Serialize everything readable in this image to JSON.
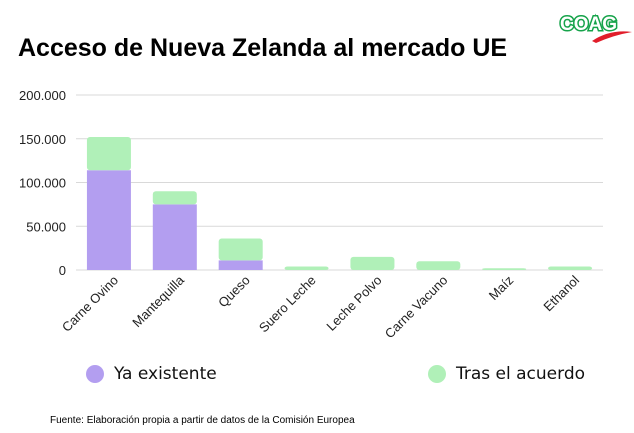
{
  "colors": {
    "existing": "#b39ef0",
    "after_deal": "#b0f0b8",
    "grid": "#d9d9d9",
    "logo_green": "#16a34a",
    "logo_red": "#e11d2a"
  },
  "logo": {
    "text": "COAG"
  },
  "chart_data": {
    "type": "bar",
    "stacked": true,
    "title": "Acceso de Nueva Zelanda al mercado UE",
    "categories": [
      "Carne Ovino",
      "Mantequilla",
      "Queso",
      "Suero Leche",
      "Leche Polvo",
      "Carne Vacuno",
      "Maíz",
      "Ethanol"
    ],
    "series": [
      {
        "name": "Ya existente",
        "values": [
          114000,
          75000,
          11000,
          0,
          0,
          0,
          0,
          0
        ]
      },
      {
        "name": "Tras el acuerdo",
        "values": [
          38000,
          15000,
          25000,
          4000,
          15000,
          10000,
          2000,
          4000
        ]
      }
    ],
    "ylim": [
      0,
      200000
    ],
    "yticks": [
      "0",
      "50.000",
      "100.000",
      "150.000",
      "200.000"
    ],
    "grid": true,
    "legend_position": "bottom"
  },
  "legend": {
    "existing_label": "Ya existente",
    "after_label": "Tras el acuerdo"
  },
  "source": "Fuente: Elaboración propia a partir de datos de la Comisión Europea"
}
